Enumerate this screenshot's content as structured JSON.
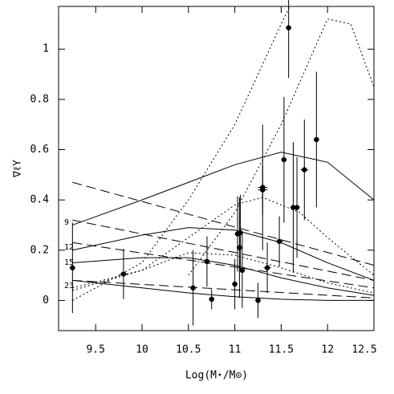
{
  "chart_data": {
    "type": "scatter",
    "xlabel": "Log(M⋆/M⊙)",
    "ylabel": "∇ℓΥ",
    "xlim": [
      9.1,
      12.5
    ],
    "ylim": [
      -0.12,
      1.17
    ],
    "xticks": [
      9.5,
      10,
      10.5,
      11,
      11.5,
      12,
      12.5
    ],
    "yticks": [
      0,
      0.2,
      0.4,
      0.6,
      0.8,
      1
    ],
    "annotations": [
      "9",
      "12",
      "15",
      "23"
    ],
    "points": {
      "color": "#000000",
      "x": [
        9.25,
        9.8,
        10.55,
        10.7,
        10.75,
        11.0,
        11.03,
        11.05,
        11.06,
        11.08,
        11.25,
        11.3,
        11.3,
        11.35,
        11.48,
        11.53,
        11.58,
        11.63,
        11.67,
        11.75,
        11.88
      ],
      "values": [
        0.13,
        0.105,
        0.05,
        0.155,
        0.005,
        0.065,
        0.265,
        0.21,
        0.27,
        0.12,
        0.0,
        0.45,
        0.44,
        0.13,
        0.235,
        0.56,
        1.085,
        0.37,
        0.37,
        0.52,
        0.64
      ],
      "errors": [
        0.18,
        0.1,
        0.15,
        0.1,
        0.04,
        0.1,
        0.15,
        0.2,
        0.15,
        0.15,
        0.07,
        0.25,
        0.1,
        0.1,
        0.1,
        0.25,
        0.2,
        0.26,
        0.2,
        0.2,
        0.27
      ],
      "xerrors": [
        0.03,
        0.04,
        0.03,
        0.03,
        0.03,
        0.03,
        0.03,
        0.03,
        0.03,
        0.03,
        0.03,
        0.05,
        0.05,
        0.04,
        0.04,
        0.03,
        0.03,
        0.03,
        0.03,
        0.04,
        0.03
      ]
    },
    "lines": [
      {
        "style": "solid",
        "x": [
          9.25,
          10,
          10.5,
          11,
          11.5,
          12,
          12.5
        ],
        "values": [
          0.3,
          0.4,
          0.47,
          0.54,
          0.59,
          0.55,
          0.4
        ]
      },
      {
        "style": "solid",
        "x": [
          9.25,
          10,
          10.5,
          11,
          11.5,
          12,
          12.5
        ],
        "values": [
          0.2,
          0.26,
          0.29,
          0.28,
          0.23,
          0.15,
          0.08
        ]
      },
      {
        "style": "solid",
        "x": [
          9.25,
          10,
          10.5,
          11,
          11.5,
          12,
          12.5
        ],
        "values": [
          0.15,
          0.17,
          0.17,
          0.14,
          0.09,
          0.05,
          0.02
        ]
      },
      {
        "style": "solid",
        "x": [
          9.25,
          10,
          10.5,
          11,
          11.5,
          12,
          12.5
        ],
        "values": [
          0.08,
          0.05,
          0.03,
          0.015,
          0.005,
          0.0,
          0.0
        ]
      },
      {
        "style": "dashed",
        "x": [
          9.25,
          12.5
        ],
        "values": [
          0.47,
          0.14
        ]
      },
      {
        "style": "dashed",
        "x": [
          9.25,
          12.5
        ],
        "values": [
          0.32,
          0.08
        ]
      },
      {
        "style": "dashed",
        "x": [
          9.25,
          12.5
        ],
        "values": [
          0.23,
          0.05
        ]
      },
      {
        "style": "dashed",
        "x": [
          9.25,
          12.5
        ],
        "values": [
          0.08,
          0.01
        ]
      },
      {
        "style": "dotted",
        "x": [
          9.25,
          10,
          10.5,
          11,
          11.5,
          11.7
        ],
        "values": [
          0.0,
          0.15,
          0.4,
          0.7,
          1.1,
          1.25
        ]
      },
      {
        "style": "dotted",
        "x": [
          10.5,
          11,
          11.5,
          12,
          12.25,
          12.5
        ],
        "values": [
          0.1,
          0.35,
          0.7,
          1.12,
          1.1,
          0.85
        ]
      },
      {
        "style": "dotted",
        "x": [
          9.25,
          10,
          10.5,
          11,
          11.3,
          11.7,
          12,
          12.5
        ],
        "values": [
          0.05,
          0.12,
          0.25,
          0.38,
          0.41,
          0.35,
          0.25,
          0.1
        ]
      },
      {
        "style": "dotted",
        "x": [
          9.25,
          10,
          10.5,
          11,
          11.5,
          12,
          12.5
        ],
        "values": [
          0.04,
          0.12,
          0.19,
          0.18,
          0.13,
          0.07,
          0.03
        ]
      }
    ]
  }
}
